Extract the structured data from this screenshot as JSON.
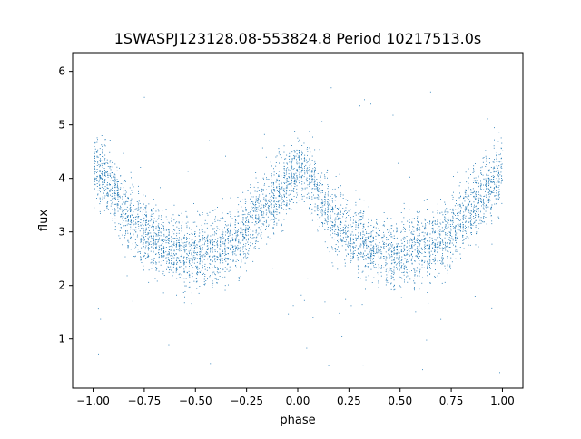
{
  "chart_data": {
    "type": "scatter",
    "title": "1SWASPJ123128.08-553824.8 Period 10217513.0s",
    "xlabel": "phase",
    "ylabel": "flux",
    "xlim": [
      -1.1,
      1.1
    ],
    "ylim": [
      0.08,
      6.35
    ],
    "xticks": [
      -1.0,
      -0.75,
      -0.5,
      -0.25,
      0.0,
      0.25,
      0.5,
      0.75,
      1.0
    ],
    "xtick_labels": [
      "−1.00",
      "−0.75",
      "−0.50",
      "−0.25",
      "0.00",
      "0.25",
      "0.50",
      "0.75",
      "1.00"
    ],
    "yticks": [
      1,
      2,
      3,
      4,
      5,
      6
    ],
    "ytick_labels": [
      "1",
      "2",
      "3",
      "4",
      "5",
      "6"
    ],
    "grid": false,
    "legend": "none",
    "marker_color": "#1f77b4",
    "series": [
      {
        "phase_profile": {
          "x": [
            -1.0,
            -0.95,
            -0.9,
            -0.85,
            -0.8,
            -0.75,
            -0.7,
            -0.65,
            -0.6,
            -0.55,
            -0.5,
            -0.45,
            -0.4,
            -0.35,
            -0.3,
            -0.25,
            -0.2,
            -0.15,
            -0.1,
            -0.05,
            0.0,
            0.05,
            0.1,
            0.15,
            0.2,
            0.25,
            0.3,
            0.35,
            0.4,
            0.45,
            0.5,
            0.55,
            0.6,
            0.65,
            0.7,
            0.75,
            0.8,
            0.85,
            0.9,
            0.95,
            1.0
          ],
          "y": [
            4.2,
            4.05,
            3.75,
            3.4,
            3.1,
            2.95,
            2.85,
            2.75,
            2.7,
            2.6,
            2.55,
            2.65,
            2.7,
            2.75,
            2.85,
            3.05,
            3.3,
            3.5,
            3.7,
            3.95,
            4.2,
            4.05,
            3.75,
            3.4,
            3.1,
            2.95,
            2.85,
            2.75,
            2.7,
            2.6,
            2.55,
            2.65,
            2.7,
            2.75,
            2.85,
            3.05,
            3.3,
            3.5,
            3.7,
            3.95,
            4.2
          ]
        },
        "scatter_sd": 0.3,
        "outlier_range": [
          0.35,
          6.1
        ]
      }
    ]
  }
}
